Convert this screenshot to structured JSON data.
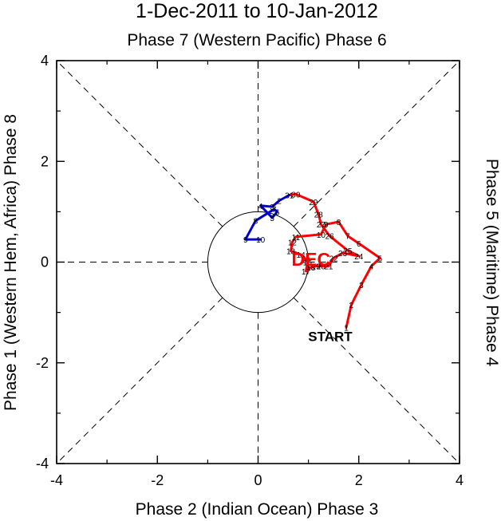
{
  "chart_data": {
    "type": "line",
    "title": "1-Dec-2011 to 10-Jan-2012",
    "top_label": "Phase 7 (Western Pacific) Phase 6",
    "xlabel": "Phase 2 (Indian Ocean) Phase 3",
    "left_label": "Phase 1 (Western Hem, Africa) Phase 8",
    "right_label": "Phase 5 (Maritime) Phase 4",
    "xlim": [
      -4,
      4
    ],
    "ylim": [
      -4,
      4
    ],
    "xticks": [
      "-4",
      "-2",
      "0",
      "2",
      "4"
    ],
    "yticks": [
      "-4",
      "-2",
      "0",
      "2",
      "4"
    ],
    "start_label": "START",
    "month_label": "DEC",
    "series": [
      {
        "month": "Dec",
        "color": "#ff0000",
        "points": [
          {
            "d": "1",
            "x": 1.75,
            "y": -1.3
          },
          {
            "d": "2",
            "x": 1.85,
            "y": -0.85
          },
          {
            "d": "3",
            "x": 2.05,
            "y": -0.45
          },
          {
            "d": "4",
            "x": 2.25,
            "y": -0.08
          },
          {
            "d": "5",
            "x": 2.42,
            "y": 0.08
          },
          {
            "d": "6",
            "x": 2.0,
            "y": 0.37
          },
          {
            "d": "7",
            "x": 1.78,
            "y": 0.52
          },
          {
            "d": "8",
            "x": 1.6,
            "y": 0.8
          },
          {
            "d": "9",
            "x": 1.35,
            "y": 0.75
          },
          {
            "d": "10",
            "x": 1.25,
            "y": 0.55
          },
          {
            "d": "11",
            "x": 0.75,
            "y": 0.5
          },
          {
            "d": "12",
            "x": 0.68,
            "y": 0.4
          },
          {
            "d": "13",
            "x": 0.65,
            "y": 0.22
          },
          {
            "d": "14",
            "x": 0.85,
            "y": 0.15
          },
          {
            "d": "15",
            "x": 0.95,
            "y": 0.05
          },
          {
            "d": "16",
            "x": 0.98,
            "y": 0.0
          },
          {
            "d": "17",
            "x": 0.95,
            "y": -0.18
          },
          {
            "d": "18",
            "x": 1.05,
            "y": -0.1
          },
          {
            "d": "19",
            "x": 1.15,
            "y": -0.08
          },
          {
            "d": "20",
            "x": 1.25,
            "y": -0.08
          },
          {
            "d": "21",
            "x": 1.4,
            "y": -0.08
          },
          {
            "d": "22",
            "x": 1.5,
            "y": 0.08
          },
          {
            "d": "23",
            "x": 1.68,
            "y": 0.18
          },
          {
            "d": "24",
            "x": 2.0,
            "y": 0.12
          },
          {
            "d": "25",
            "x": 1.78,
            "y": 0.23
          },
          {
            "d": "26",
            "x": 1.42,
            "y": 0.52
          },
          {
            "d": "27",
            "x": 1.25,
            "y": 0.75
          },
          {
            "d": "28",
            "x": 1.2,
            "y": 0.95
          },
          {
            "d": "29",
            "x": 1.1,
            "y": 1.2
          },
          {
            "d": "30",
            "x": 0.75,
            "y": 1.35
          },
          {
            "d": "31",
            "x": 0.62,
            "y": 1.33
          }
        ]
      },
      {
        "month": "Jan",
        "color": "#0000cc",
        "points": [
          {
            "d": "1",
            "x": 0.62,
            "y": 1.33
          },
          {
            "d": "2",
            "x": 0.42,
            "y": 1.22
          },
          {
            "d": "3",
            "x": 0.28,
            "y": 1.1
          },
          {
            "d": "4",
            "x": 0.05,
            "y": 1.12
          },
          {
            "d": "5",
            "x": 0.28,
            "y": 0.88
          },
          {
            "d": "6",
            "x": 0.38,
            "y": 1.0
          },
          {
            "d": "7",
            "x": 0.32,
            "y": 1.05
          },
          {
            "d": "8",
            "x": -0.05,
            "y": 0.82
          },
          {
            "d": "9",
            "x": -0.25,
            "y": 0.45
          },
          {
            "d": "10",
            "x": 0.05,
            "y": 0.45
          }
        ]
      }
    ]
  }
}
